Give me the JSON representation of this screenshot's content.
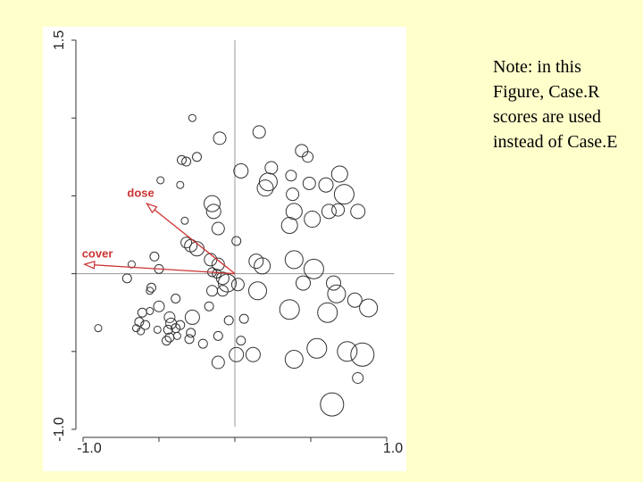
{
  "note": "Note: in this Figure, Case.R scores are used instead of Case.E",
  "chart_data": {
    "type": "scatter",
    "xlim": [
      -1.05,
      1.05
    ],
    "ylim": [
      -1.0,
      1.5
    ],
    "xticks": [
      {
        "value": -1.0,
        "label": "-1.0"
      },
      {
        "value": -0.5,
        "label": null
      },
      {
        "value": 0,
        "label": null
      },
      {
        "value": 0.5,
        "label": null
      },
      {
        "value": 1.0,
        "label": "1.0"
      }
    ],
    "yticks": [
      {
        "value": -1.0,
        "label": "-1.0"
      },
      {
        "value": -0.5,
        "label": null
      },
      {
        "value": 0,
        "label": null
      },
      {
        "value": 0.5,
        "label": null
      },
      {
        "value": 1.0,
        "label": null
      },
      1.5
    ],
    "color": "#333333",
    "arrow_color": "#cc3333",
    "arrows": [
      {
        "label": "dose",
        "x": -0.58,
        "y": 0.45
      },
      {
        "label": "cover",
        "x": -0.99,
        "y": 0.06
      }
    ],
    "x": [
      -0.28,
      -0.1,
      0.16,
      -0.35,
      -0.32,
      -0.25,
      0.44,
      0.48,
      0.04,
      0.24,
      0.22,
      0.2,
      0.37,
      0.49,
      0.6,
      0.69,
      0.72,
      -0.49,
      -0.36,
      -0.15,
      -0.14,
      0.38,
      0.39,
      0.51,
      0.62,
      0.68,
      0.81,
      -0.33,
      -0.11,
      0.36,
      -0.32,
      -0.29,
      -0.25,
      0.01,
      -0.53,
      -0.68,
      -0.16,
      -0.11,
      0.14,
      0.18,
      0.39,
      0.52,
      -0.5,
      -0.71,
      -0.15,
      -0.12,
      -0.08,
      -0.05,
      0.02,
      0.15,
      0.45,
      0.65,
      0.67,
      -0.15,
      -0.08,
      -0.55,
      -0.56,
      -0.39,
      -0.17,
      -0.5,
      -0.28,
      0.36,
      0.61,
      0.79,
      0.88,
      -0.61,
      -0.59,
      -0.43,
      -0.42,
      -0.36,
      -0.44,
      -0.39,
      -0.43,
      -0.3,
      -0.45,
      -0.62,
      -0.65,
      -0.51,
      -0.9,
      -0.11,
      -0.04,
      0.06,
      0.01,
      0.12,
      -0.11,
      0.39,
      0.54,
      0.74,
      0.84,
      0.81,
      0.64,
      -0.56,
      -0.21,
      0.04,
      -0.63,
      -0.29,
      -0.38
    ],
    "y": [
      1.0,
      0.87,
      0.91,
      0.73,
      0.72,
      0.75,
      0.79,
      0.75,
      0.66,
      0.68,
      0.59,
      0.55,
      0.63,
      0.58,
      0.57,
      0.64,
      0.51,
      0.6,
      0.57,
      0.45,
      0.4,
      0.51,
      0.4,
      0.35,
      0.4,
      0.41,
      0.4,
      0.34,
      0.29,
      0.31,
      0.2,
      0.18,
      0.16,
      0.21,
      0.11,
      0.06,
      0.09,
      0.06,
      0.08,
      0.05,
      0.09,
      0.03,
      0.03,
      -0.03,
      0.01,
      0.0,
      -0.03,
      -0.06,
      -0.07,
      -0.11,
      -0.06,
      -0.06,
      -0.13,
      -0.11,
      -0.11,
      -0.09,
      -0.11,
      -0.16,
      -0.21,
      -0.21,
      -0.28,
      -0.23,
      -0.25,
      -0.17,
      -0.22,
      -0.25,
      -0.33,
      -0.28,
      -0.32,
      -0.33,
      -0.36,
      -0.35,
      -0.41,
      -0.42,
      -0.43,
      -0.37,
      -0.35,
      -0.36,
      -0.35,
      -0.4,
      -0.3,
      -0.29,
      -0.52,
      -0.52,
      -0.57,
      -0.55,
      -0.48,
      -0.5,
      -0.52,
      -0.67,
      -0.84,
      -0.24,
      -0.45,
      -0.43,
      -0.31,
      -0.38,
      -0.4
    ],
    "size": [
      4,
      7,
      7,
      5,
      5,
      5,
      7,
      6,
      8,
      7,
      10,
      9,
      6,
      7,
      8,
      9,
      11,
      4,
      4,
      9,
      8,
      7,
      9,
      9,
      8,
      7,
      8,
      4,
      7,
      9,
      6,
      7,
      8,
      5,
      5,
      4,
      7,
      7,
      8,
      9,
      10,
      11,
      5,
      5,
      5,
      5,
      7,
      10,
      7,
      10,
      8,
      8,
      10,
      6,
      6,
      5,
      4,
      5,
      5,
      6,
      8,
      11,
      11,
      8,
      10,
      5,
      5,
      6,
      6,
      5,
      5,
      5,
      5,
      5,
      5,
      4,
      4,
      4,
      4,
      5,
      5,
      5,
      8,
      8,
      7,
      10,
      11,
      11,
      13,
      6,
      13,
      4,
      5,
      5,
      5,
      5,
      4
    ]
  }
}
